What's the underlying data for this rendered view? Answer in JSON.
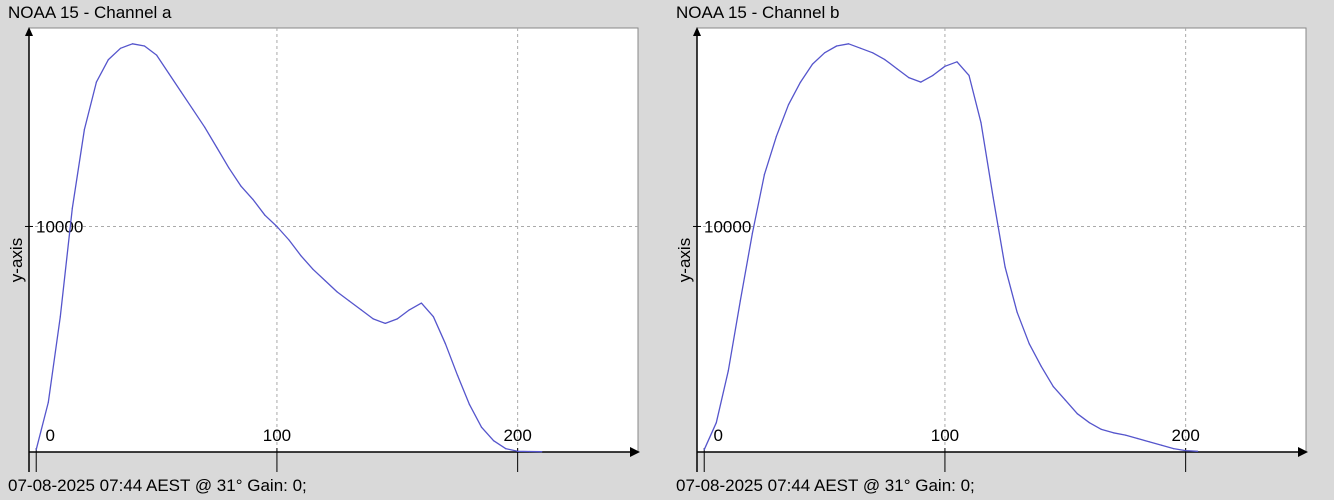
{
  "colors": {
    "background": "#d9d9d9",
    "plot_area": "#ffffff",
    "line": "#5555cc",
    "grid": "#aaaaaa",
    "axis": "#000000"
  },
  "chart_data": [
    {
      "type": "line",
      "title": "NOAA 15 - Channel a",
      "footer": "07-08-2025 07:44 AEST @ 31° Gain: 0;",
      "ylabel": "y-axis",
      "xlabel": "",
      "xlim": [
        -3,
        250
      ],
      "ylim": [
        0,
        18800
      ],
      "x_ticks": [
        0,
        100,
        200
      ],
      "y_ticks": [
        10000
      ],
      "grid": true,
      "series": [
        {
          "x": [
            0,
            5,
            10,
            15,
            20,
            25,
            30,
            35,
            40,
            45,
            50,
            55,
            60,
            65,
            70,
            75,
            80,
            85,
            90,
            95,
            100,
            105,
            110,
            115,
            120,
            125,
            130,
            135,
            140,
            145,
            150,
            155,
            160,
            165,
            170,
            175,
            180,
            185,
            190,
            195,
            200,
            205,
            210
          ],
          "values": [
            100,
            2200,
            6000,
            10800,
            14300,
            16400,
            17400,
            17900,
            18100,
            18000,
            17600,
            16800,
            16000,
            15200,
            14400,
            13500,
            12600,
            11800,
            11200,
            10500,
            10000,
            9400,
            8700,
            8100,
            7600,
            7100,
            6700,
            6300,
            5900,
            5700,
            5900,
            6300,
            6600,
            6000,
            4800,
            3400,
            2100,
            1100,
            500,
            150,
            30,
            20,
            15
          ]
        }
      ]
    },
    {
      "type": "line",
      "title": "NOAA 15 - Channel b",
      "footer": "07-08-2025 07:44 AEST @ 31° Gain: 0;",
      "ylabel": "y-axis",
      "xlabel": "",
      "xlim": [
        -3,
        250
      ],
      "ylim": [
        0,
        18800
      ],
      "x_ticks": [
        0,
        100,
        200
      ],
      "y_ticks": [
        10000
      ],
      "grid": true,
      "series": [
        {
          "x": [
            0,
            5,
            10,
            15,
            20,
            25,
            30,
            35,
            40,
            45,
            50,
            55,
            60,
            65,
            70,
            75,
            80,
            85,
            90,
            95,
            100,
            105,
            110,
            115,
            120,
            125,
            130,
            135,
            140,
            145,
            150,
            155,
            160,
            165,
            170,
            175,
            180,
            185,
            190,
            195,
            200,
            205
          ],
          "values": [
            100,
            1300,
            3600,
            6700,
            9700,
            12300,
            14000,
            15400,
            16400,
            17200,
            17700,
            18000,
            18100,
            17900,
            17700,
            17400,
            17000,
            16600,
            16400,
            16700,
            17100,
            17300,
            16700,
            14600,
            11300,
            8200,
            6200,
            4800,
            3800,
            2900,
            2300,
            1700,
            1300,
            1000,
            850,
            750,
            600,
            450,
            300,
            150,
            60,
            30
          ]
        }
      ]
    }
  ]
}
